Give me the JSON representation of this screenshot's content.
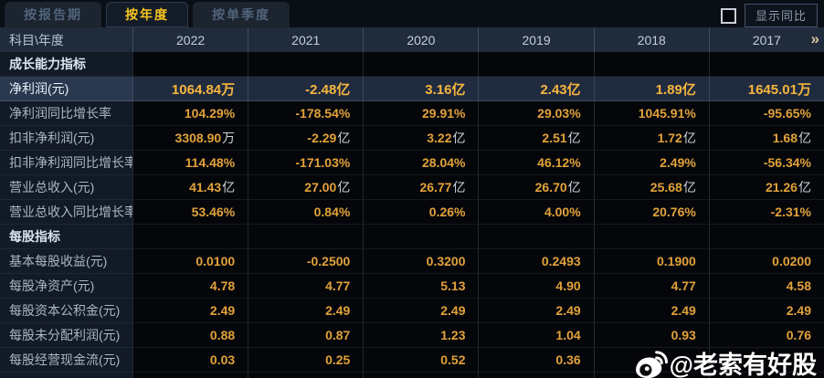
{
  "tabs": [
    {
      "label": "按报告期",
      "active": false
    },
    {
      "label": "按年度",
      "active": true
    },
    {
      "label": "按单季度",
      "active": false
    }
  ],
  "controls": {
    "show_yoy_label": "显示同比",
    "checkbox_checked": false
  },
  "table": {
    "corner_header": "科目\\年度",
    "year_columns": [
      "2022",
      "2021",
      "2020",
      "2019",
      "2018",
      "2017"
    ],
    "more_icon": "»",
    "rows": [
      {
        "label": "成长能力指标",
        "type": "section",
        "values": [
          "",
          "",
          "",
          "",
          "",
          ""
        ]
      },
      {
        "label": "净利润(元)",
        "type": "highlight",
        "values": [
          "1064.84万",
          "-2.48亿",
          "3.16亿",
          "2.43亿",
          "1.89亿",
          "1645.01万"
        ]
      },
      {
        "label": "净利润同比增长率",
        "type": "data",
        "values": [
          "104.29%",
          "-178.54%",
          "29.91%",
          "29.03%",
          "1045.91%",
          "-95.65%"
        ]
      },
      {
        "label": "扣非净利润(元)",
        "type": "data",
        "values": [
          "3308.90万",
          "-2.29亿",
          "3.22亿",
          "2.51亿",
          "1.72亿",
          "1.68亿"
        ]
      },
      {
        "label": "扣非净利润同比增长率",
        "type": "data",
        "values": [
          "114.48%",
          "-171.03%",
          "28.04%",
          "46.12%",
          "2.49%",
          "-56.34%"
        ]
      },
      {
        "label": "营业总收入(元)",
        "type": "data",
        "values": [
          "41.43亿",
          "27.00亿",
          "26.77亿",
          "26.70亿",
          "25.68亿",
          "21.26亿"
        ]
      },
      {
        "label": "营业总收入同比增长率",
        "type": "data",
        "values": [
          "53.46%",
          "0.84%",
          "0.26%",
          "4.00%",
          "20.76%",
          "-2.31%"
        ]
      },
      {
        "label": "每股指标",
        "type": "section",
        "values": [
          "",
          "",
          "",
          "",
          "",
          ""
        ]
      },
      {
        "label": "基本每股收益(元)",
        "type": "data",
        "values": [
          "0.0100",
          "-0.2500",
          "0.3200",
          "0.2493",
          "0.1900",
          "0.0200"
        ]
      },
      {
        "label": "每股净资产(元)",
        "type": "data",
        "values": [
          "4.78",
          "4.77",
          "5.13",
          "4.90",
          "4.77",
          "4.58"
        ]
      },
      {
        "label": "每股资本公积金(元)",
        "type": "data",
        "values": [
          "2.49",
          "2.49",
          "2.49",
          "2.49",
          "2.49",
          "2.49"
        ]
      },
      {
        "label": "每股未分配利润(元)",
        "type": "data",
        "values": [
          "0.88",
          "0.87",
          "1.23",
          "1.04",
          "0.93",
          "0.76"
        ]
      },
      {
        "label": "每股经营现金流(元)",
        "type": "data",
        "values": [
          "0.03",
          "0.25",
          "0.52",
          "0.36",
          "",
          ""
        ]
      }
    ]
  },
  "watermark": {
    "text": "@老索有好股"
  },
  "colors": {
    "value_gold": "#e2a23a",
    "highlight_gold": "#f7b63e",
    "active_tab_text": "#f5c51d",
    "highlight_row_bg": "#202b40"
  }
}
